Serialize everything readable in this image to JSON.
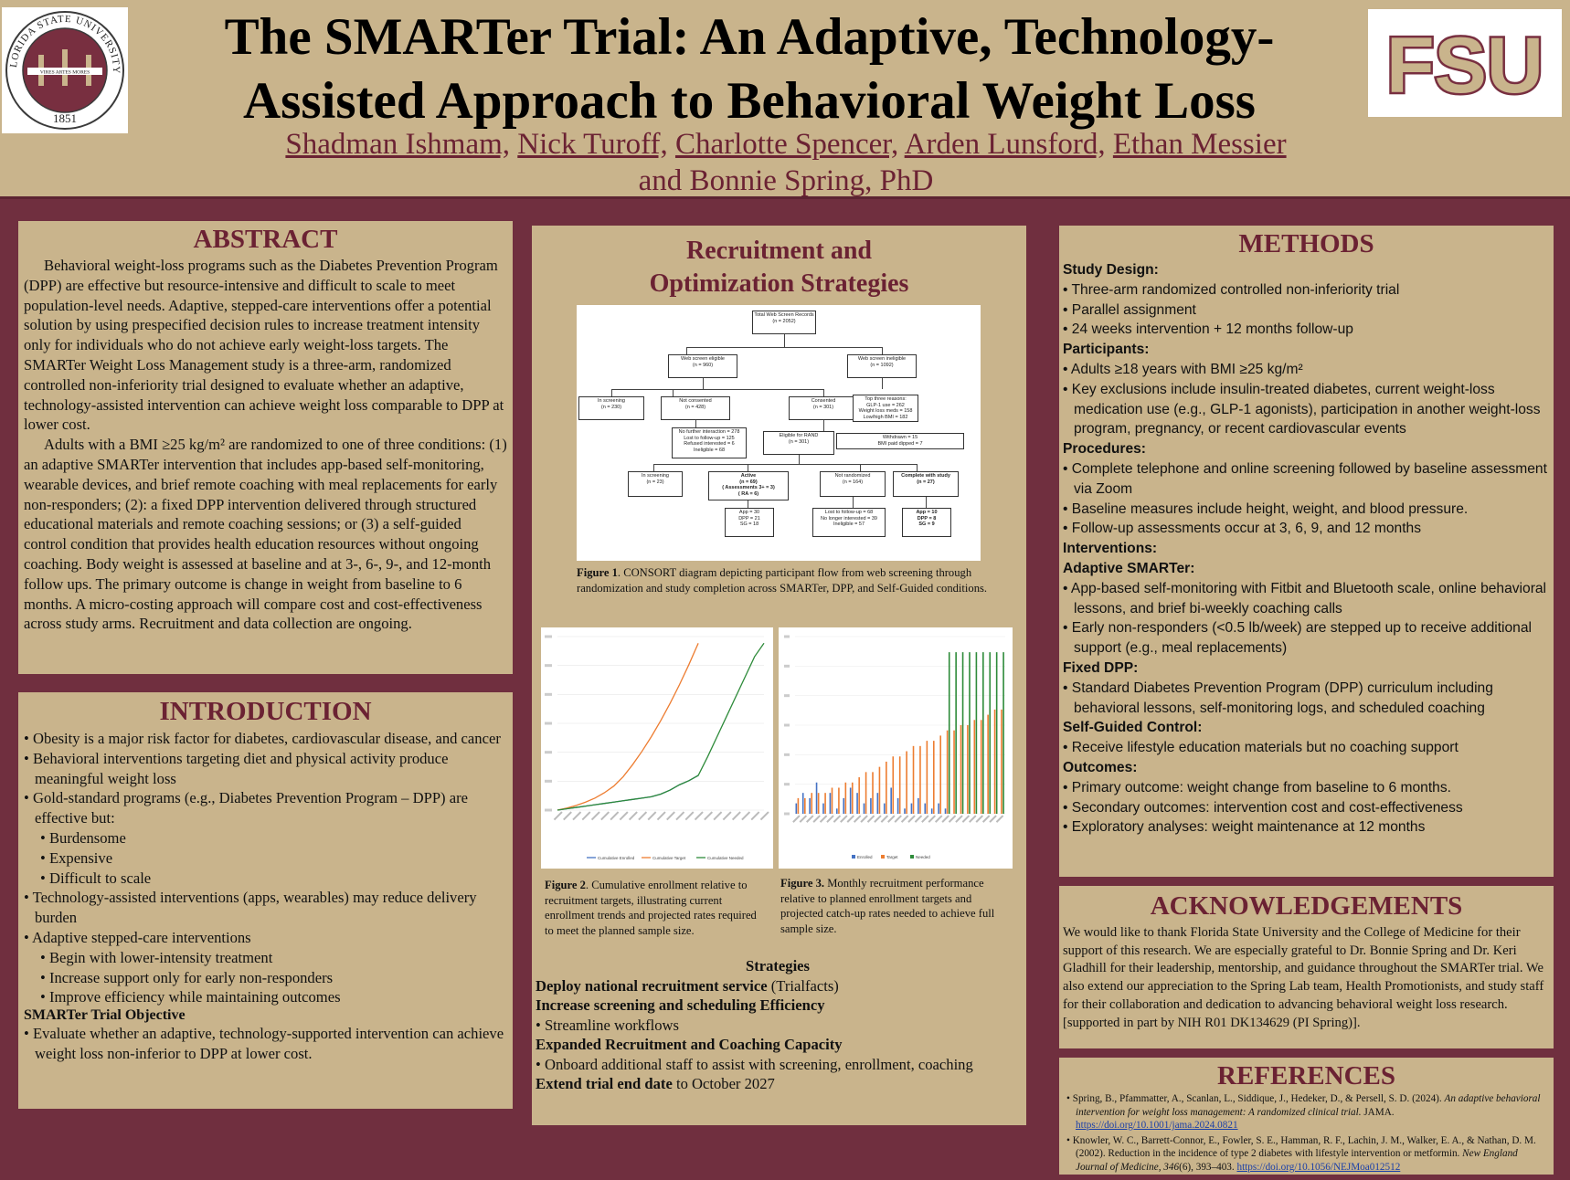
{
  "header": {
    "title_line1": "The SMARTer Trial: An Adaptive, Technology-",
    "title_line2": "Assisted Approach to Behavioral Weight Loss",
    "authors": [
      "Shadman Ishmam,",
      "Nick Turoff,",
      "Charlotte Spencer,",
      "Arden Lunsford,",
      "Ethan Messier"
    ],
    "authors_end": "and Bonnie Spring, PhD",
    "seal_text_top": "FLORIDA STATE UNIVERSITY",
    "seal_year": "1851",
    "seal_motto": "VIRES ARTES MORES",
    "logo_text": "FSU"
  },
  "abstract": {
    "heading": "ABSTRACT",
    "p1": "Behavioral weight-loss programs such as the Diabetes Prevention Program (DPP) are effective but resource-intensive and difficult to scale to meet population-level needs. Adaptive, stepped-care interventions offer a potential solution by using prespecified decision rules to increase treatment intensity only for individuals who do not achieve early weight-loss targets. The SMARTer Weight Loss Management study is a three-arm, randomized controlled non-inferiority trial designed to evaluate whether an adaptive, technology-assisted intervention can achieve weight loss comparable to DPP at lower cost.",
    "p2": "Adults with a BMI ≥25 kg/m² are randomized to one of three conditions: (1) an adaptive SMARTer intervention that includes app-based self-monitoring, wearable devices, and brief remote coaching with meal replacements for early non-responders; (2): a fixed DPP intervention delivered through structured educational materials and remote coaching sessions; or (3) a self-guided control condition that provides health education resources without ongoing coaching. Body weight is assessed at baseline and at 3-, 6-, 9-, and 12-month follow ups. The primary outcome is change in weight from baseline to 6 months. A micro-costing approach will compare cost and cost-effectiveness across study arms. Recruitment and data collection are ongoing."
  },
  "intro": {
    "heading": "INTRODUCTION",
    "items": [
      {
        "t": "• Obesity is a major risk factor for diabetes, cardiovascular disease, and cancer",
        "sub": false
      },
      {
        "t": "• Behavioral interventions targeting diet and physical activity produce meaningful weight loss",
        "sub": false
      },
      {
        "t": "• Gold-standard programs (e.g., Diabetes Prevention Program – DPP) are effective but:",
        "sub": false
      },
      {
        "t": "• Burdensome",
        "sub": true
      },
      {
        "t": "• Expensive",
        "sub": true
      },
      {
        "t": "• Difficult to scale",
        "sub": true
      },
      {
        "t": "• Technology-assisted interventions (apps, wearables) may reduce delivery burden",
        "sub": false
      },
      {
        "t": "• Adaptive stepped-care interventions",
        "sub": false
      },
      {
        "t": "• Begin with lower-intensity treatment",
        "sub": true
      },
      {
        "t": "• Increase support only for early non-responders",
        "sub": true
      },
      {
        "t": "• Improve efficiency while maintaining outcomes",
        "sub": true
      }
    ],
    "objective_heading": "SMARTer Trial Objective",
    "objective": "• Evaluate whether an adaptive, technology-supported intervention can achieve weight loss non-inferior to DPP at lower cost."
  },
  "recruit": {
    "heading_line1": "Recruitment and",
    "heading_line2": "Optimization Strategies",
    "fig1_label": "Figure 1",
    "fig1_caption": ". CONSORT diagram depicting participant flow from web screening through randomization and study completion across SMARTer, DPP, and Self-Guided conditions.",
    "fig2_label": "Figure 2",
    "fig2_caption": ". Cumulative enrollment relative to recruitment targets, illustrating current enrollment trends and projected rates required to meet the planned sample size.",
    "fig3_label": "Figure 3.",
    "fig3_caption": " Monthly recruitment performance relative to planned enrollment targets and projected catch-up rates needed to achieve full sample size.",
    "consort": {
      "total": "Total Web Screen Records",
      "total_n": "(n = 2052)",
      "eligible": "Web screen eligible",
      "eligible_n": "(n = 960)",
      "ineligible": "Web screen ineligible",
      "ineligible_n": "(n = 1092)",
      "in_screening": "In screening",
      "in_screening_n": "(n = 230)",
      "not_consented": "Not consented",
      "not_consented_n": "(n = 428)",
      "consented": "Consented",
      "consented_n": "(n = 301)",
      "top_reasons": "Top three reasons:",
      "r1": "GLP-1 use = 262",
      "r2": "Weight loss meds = 158",
      "r3": "Low/high BMI = 182",
      "no_further": "No further interaction = 278",
      "lost_followup": "Lost to follow-up = 125",
      "refused": "Refused interested = 6",
      "ineligible_cnt": "Ineligible = 68",
      "eligible_rand": "Eligible for RAND",
      "eligible_rand_n": "(n = 301)",
      "withdrawn": "Withdrawn = 15",
      "bmi_paid": "BMI paid dipped = 7",
      "in_screening2": "In screening",
      "in_screening2_n": "(n = 23)",
      "active": "Active",
      "active_n": "(n = 69)",
      "active_sub": "( Assessments 3+ = 3)",
      "active_sub2": "( RA = 6)",
      "not_rand": "Not randomized",
      "not_rand_n": "(n = 164)",
      "complete": "Complete with study",
      "complete_n": "(n = 27)",
      "a1": "App = 30",
      "a2": "DPP = 21",
      "a3": "SG = 18",
      "b1": "Lost to follow-up = 68",
      "b2": "No longer interested = 39",
      "b3": "Ineligible = 57",
      "c1": "App = 10",
      "c2": "DPP = 8",
      "c3": "SG = 9"
    },
    "chart1_legend": [
      "Cumulative Enrolled",
      "Cumulative Target",
      "Cumulative Needed"
    ],
    "chart2_legend": [
      "Enrolled",
      "Target",
      "Needed"
    ],
    "strat_title": "Strategies",
    "s1_b": "Deploy national recruitment service",
    "s1_t": " (Trialfacts)",
    "s2_b": "Increase screening and scheduling Efficiency",
    "s2_item": "• Streamline workflows",
    "s3_b": "Expanded Recruitment and Coaching Capacity",
    "s3_item": "• Onboard additional staff to assist with screening, enrollment, coaching",
    "s4_b": "Extend trial end date",
    "s4_t": " to October 2027"
  },
  "chart_data": [
    {
      "type": "line",
      "series": [
        {
          "name": "Cumulative Enrolled",
          "color": "#4472c4",
          "values": [
            0,
            2,
            4,
            6,
            8,
            10,
            12,
            14,
            16,
            18,
            20,
            24,
            30,
            38,
            44,
            52
          ]
        },
        {
          "name": "Cumulative Target",
          "color": "#ed7d31",
          "values": [
            0,
            3,
            7,
            12,
            18,
            26,
            36,
            50,
            68,
            88,
            110,
            134,
            160,
            188,
            218,
            250
          ]
        },
        {
          "name": "Cumulative Needed",
          "color": "#2e8b3a",
          "values": [
            0,
            2,
            4,
            6,
            8,
            10,
            12,
            14,
            16,
            18,
            20,
            24,
            30,
            38,
            44,
            52,
            80,
            110,
            140,
            170,
            200,
            230,
            250
          ]
        }
      ],
      "ylim": [
        0,
        260
      ]
    },
    {
      "type": "bar",
      "series": [
        {
          "name": "Enrolled",
          "color": "#4472c4",
          "values": [
            2,
            4,
            3,
            6,
            2,
            4,
            1,
            3,
            5,
            4,
            2,
            3,
            4,
            2,
            5,
            3,
            1,
            2,
            3,
            2,
            1,
            2,
            1,
            0,
            0,
            0,
            0,
            0,
            0,
            0,
            0
          ]
        },
        {
          "name": "Target",
          "color": "#ed7d31",
          "values": [
            3,
            3,
            4,
            4,
            4,
            5,
            5,
            6,
            6,
            7,
            8,
            8,
            9,
            10,
            11,
            11,
            12,
            13,
            13,
            14,
            14,
            15,
            16,
            16,
            17,
            17,
            18,
            18,
            19,
            20,
            20
          ]
        },
        {
          "name": "Needed",
          "color": "#2e8b3a",
          "values": [
            0,
            0,
            0,
            0,
            0,
            0,
            0,
            0,
            0,
            0,
            0,
            0,
            0,
            0,
            0,
            0,
            0,
            0,
            0,
            0,
            0,
            0,
            31,
            31,
            31,
            31,
            31,
            31,
            31,
            31,
            31
          ]
        }
      ],
      "ylim": [
        0,
        34
      ]
    }
  ],
  "methods": {
    "heading": "METHODS",
    "sections": [
      {
        "h": "Study Design:",
        "items": [
          "• Three-arm randomized controlled non-inferiority trial",
          "• Parallel assignment",
          "• 24 weeks intervention + 12 months follow-up"
        ]
      },
      {
        "h": "Participants:",
        "items": [
          "• Adults ≥18 years with BMI ≥25 kg/m²",
          "• Key exclusions include insulin-treated diabetes, current weight-loss medication use (e.g., GLP-1 agonists), participation in another weight-loss program, pregnancy, or recent cardiovascular events"
        ]
      },
      {
        "h": "Procedures:",
        "items": [
          "• Complete telephone and online screening followed by baseline assessment via Zoom",
          "• Baseline measures include height, weight, and blood pressure.",
          "• Follow-up assessments occur at 3, 6, 9, and 12 months"
        ]
      },
      {
        "h": "Interventions:",
        "items": []
      },
      {
        "h": "Adaptive SMARTer:",
        "items": [
          "• App-based self-monitoring with Fitbit and Bluetooth scale, online behavioral lessons, and brief bi-weekly coaching calls",
          "• Early non-responders (<0.5 lb/week) are stepped up to receive additional support (e.g., meal replacements)"
        ]
      },
      {
        "h": "Fixed DPP:",
        "items": [
          "• Standard Diabetes Prevention Program (DPP) curriculum including behavioral lessons, self-monitoring logs, and scheduled coaching"
        ]
      },
      {
        "h": "Self-Guided Control:",
        "items": [
          "• Receive lifestyle education materials but no coaching support"
        ]
      },
      {
        "h": "Outcomes:",
        "items": [
          "• Primary outcome: weight change from baseline to 6 months.",
          "• Secondary outcomes: intervention cost and cost-effectiveness",
          "• Exploratory analyses: weight maintenance at 12 months"
        ]
      }
    ]
  },
  "ack": {
    "heading": "ACKNOWLEDGEMENTS",
    "text": "We would like to thank Florida State University and the College of Medicine for their support of this research. We are especially grateful to Dr. Bonnie Spring and Dr. Keri Gladhill for their leadership, mentorship, and guidance throughout the SMARTer trial. We also extend our appreciation to the Spring Lab team, Health Promotionists, and study staff for their collaboration and dedication to advancing behavioral weight loss research. [supported in part by NIH R01 DK134629 (PI Spring)]."
  },
  "refs": {
    "heading": "REFERENCES",
    "r1_a": "Spring, B., Pfammatter, A., Scanlan, L., Siddique, J., Hedeker, D., & Persell, S. D. (2024). ",
    "r1_i": "An adaptive behavioral intervention for weight loss management: A randomized clinical trial.",
    "r1_b": " JAMA. ",
    "r1_link": "https://doi.org/10.1001/jama.2024.0821",
    "r2_a": "Knowler, W. C., Barrett-Connor, E., Fowler, S. E., Hamman, R. F., Lachin, J. M., Walker, E. A., & Nathan, D. M. (2002). Reduction in the incidence of type 2 diabetes with lifestyle intervention or metformin. ",
    "r2_i": "New England Journal of Medicine, 346",
    "r2_b": "(6), 393–403. ",
    "r2_link": "https://doi.org/10.1056/NEJMoa012512"
  }
}
